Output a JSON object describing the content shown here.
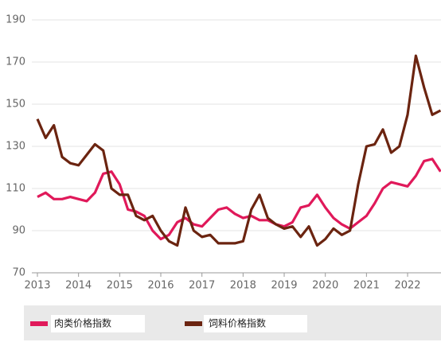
{
  "chart_data": {
    "type": "line",
    "x": [
      2013.0,
      2013.2,
      2013.4,
      2013.6,
      2013.8,
      2014.0,
      2014.2,
      2014.4,
      2014.6,
      2014.8,
      2015.0,
      2015.2,
      2015.4,
      2015.6,
      2015.8,
      2016.0,
      2016.2,
      2016.4,
      2016.6,
      2016.8,
      2017.0,
      2017.2,
      2017.4,
      2017.6,
      2017.8,
      2018.0,
      2018.2,
      2018.4,
      2018.6,
      2018.8,
      2019.0,
      2019.2,
      2019.4,
      2019.6,
      2019.8,
      2020.0,
      2020.2,
      2020.4,
      2020.6,
      2020.8,
      2021.0,
      2021.2,
      2021.4,
      2021.6,
      2021.8,
      2022.0,
      2022.2,
      2022.4,
      2022.6,
      2022.8
    ],
    "series": [
      {
        "name": "肉类价格指数",
        "color": "#e0195a",
        "values": [
          106,
          108,
          105,
          105,
          106,
          105,
          104,
          108,
          117,
          118,
          112,
          100,
          99,
          97,
          90,
          86,
          88,
          94,
          96,
          93,
          92,
          96,
          100,
          101,
          98,
          96,
          97,
          95,
          95,
          93,
          92,
          94,
          101,
          102,
          107,
          101,
          96,
          93,
          91,
          94,
          97,
          103,
          110,
          113,
          112,
          111,
          116,
          123,
          124,
          118
        ]
      },
      {
        "name": "饲料价格指数",
        "color": "#6b2410",
        "values": [
          143,
          134,
          140,
          125,
          122,
          121,
          126,
          131,
          128,
          110,
          107,
          107,
          97,
          95,
          97,
          90,
          85,
          83,
          101,
          90,
          87,
          88,
          84,
          84,
          84,
          85,
          100,
          107,
          96,
          93,
          91,
          92,
          87,
          92,
          83,
          86,
          91,
          88,
          90,
          112,
          130,
          131,
          138,
          127,
          130,
          145,
          173,
          158,
          145,
          147
        ]
      }
    ],
    "xlim": [
      2013,
      2022.8
    ],
    "xticks": [
      2013,
      2014,
      2015,
      2016,
      2017,
      2018,
      2019,
      2020,
      2021,
      2022
    ],
    "ylim": [
      70,
      190
    ],
    "yticks": [
      70,
      90,
      110,
      130,
      150,
      170,
      190
    ],
    "grid": true,
    "legend": "bottom"
  }
}
